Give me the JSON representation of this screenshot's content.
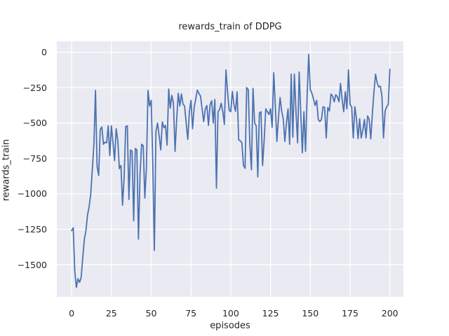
{
  "figure": {
    "background": "#ffffff"
  },
  "chart_data": {
    "type": "line",
    "title": "rewards_train of DDPG",
    "xlabel": "episodes",
    "ylabel": "rewards_train",
    "legend_position": "none",
    "grid": true,
    "plot_bg_color": "#eaeaf2",
    "grid_color": "#ffffff",
    "line_color": "#4c72b0",
    "text_color": "#262626",
    "xlim": [
      -9.3,
      208.5
    ],
    "ylim": [
      -1727,
      77
    ],
    "x_ticks": [
      0,
      25,
      50,
      75,
      100,
      125,
      150,
      175,
      200
    ],
    "x_tick_labels": [
      "0",
      "25",
      "50",
      "75",
      "100",
      "125",
      "150",
      "175",
      "200"
    ],
    "y_ticks": [
      0,
      -250,
      -500,
      -750,
      -1000,
      -1250,
      -1500
    ],
    "y_tick_labels": [
      "0",
      "−250",
      "−500",
      "−750",
      "−1000",
      "−1250",
      "−1500"
    ],
    "x_start": 0,
    "x_step": 1,
    "values": [
      -1260,
      -1240,
      -1550,
      -1660,
      -1600,
      -1625,
      -1590,
      -1450,
      -1320,
      -1260,
      -1150,
      -1090,
      -1005,
      -828,
      -650,
      -270,
      -805,
      -870,
      -545,
      -528,
      -650,
      -635,
      -640,
      -520,
      -730,
      -520,
      -640,
      -765,
      -540,
      -620,
      -822,
      -800,
      -1080,
      -880,
      -525,
      -520,
      -1040,
      -690,
      -700,
      -1190,
      -680,
      -690,
      -1320,
      -860,
      -650,
      -660,
      -1030,
      -815,
      -270,
      -380,
      -340,
      -780,
      -1400,
      -560,
      -500,
      -590,
      -690,
      -492,
      -533,
      -517,
      -656,
      -260,
      -395,
      -305,
      -360,
      -700,
      -480,
      -290,
      -380,
      -295,
      -367,
      -380,
      -500,
      -615,
      -420,
      -340,
      -540,
      -392,
      -330,
      -268,
      -290,
      -310,
      -400,
      -490,
      -400,
      -376,
      -517,
      -370,
      -343,
      -500,
      -334,
      -960,
      -420,
      -405,
      -360,
      -420,
      -510,
      -125,
      -280,
      -410,
      -420,
      -277,
      -370,
      -417,
      -280,
      -620,
      -625,
      -640,
      -800,
      -820,
      -250,
      -265,
      -650,
      -830,
      -255,
      -500,
      -520,
      -880,
      -430,
      -420,
      -800,
      -620,
      -400,
      -420,
      -440,
      -400,
      -530,
      -145,
      -380,
      -630,
      -460,
      -320,
      -417,
      -470,
      -630,
      -500,
      -400,
      -650,
      -155,
      -600,
      -155,
      -420,
      -640,
      -140,
      -430,
      -710,
      -420,
      -700,
      -300,
      -15,
      -265,
      -290,
      -330,
      -376,
      -340,
      -475,
      -490,
      -475,
      -385,
      -390,
      -605,
      -390,
      -415,
      -295,
      -310,
      -350,
      -300,
      -315,
      -350,
      -220,
      -335,
      -420,
      -280,
      -400,
      -125,
      -370,
      -385,
      -605,
      -385,
      -470,
      -610,
      -470,
      -605,
      -550,
      -475,
      -605,
      -450,
      -475,
      -612,
      -434,
      -280,
      -155,
      -215,
      -245,
      -240,
      -310,
      -605,
      -415,
      -385,
      -370,
      -120
    ]
  }
}
